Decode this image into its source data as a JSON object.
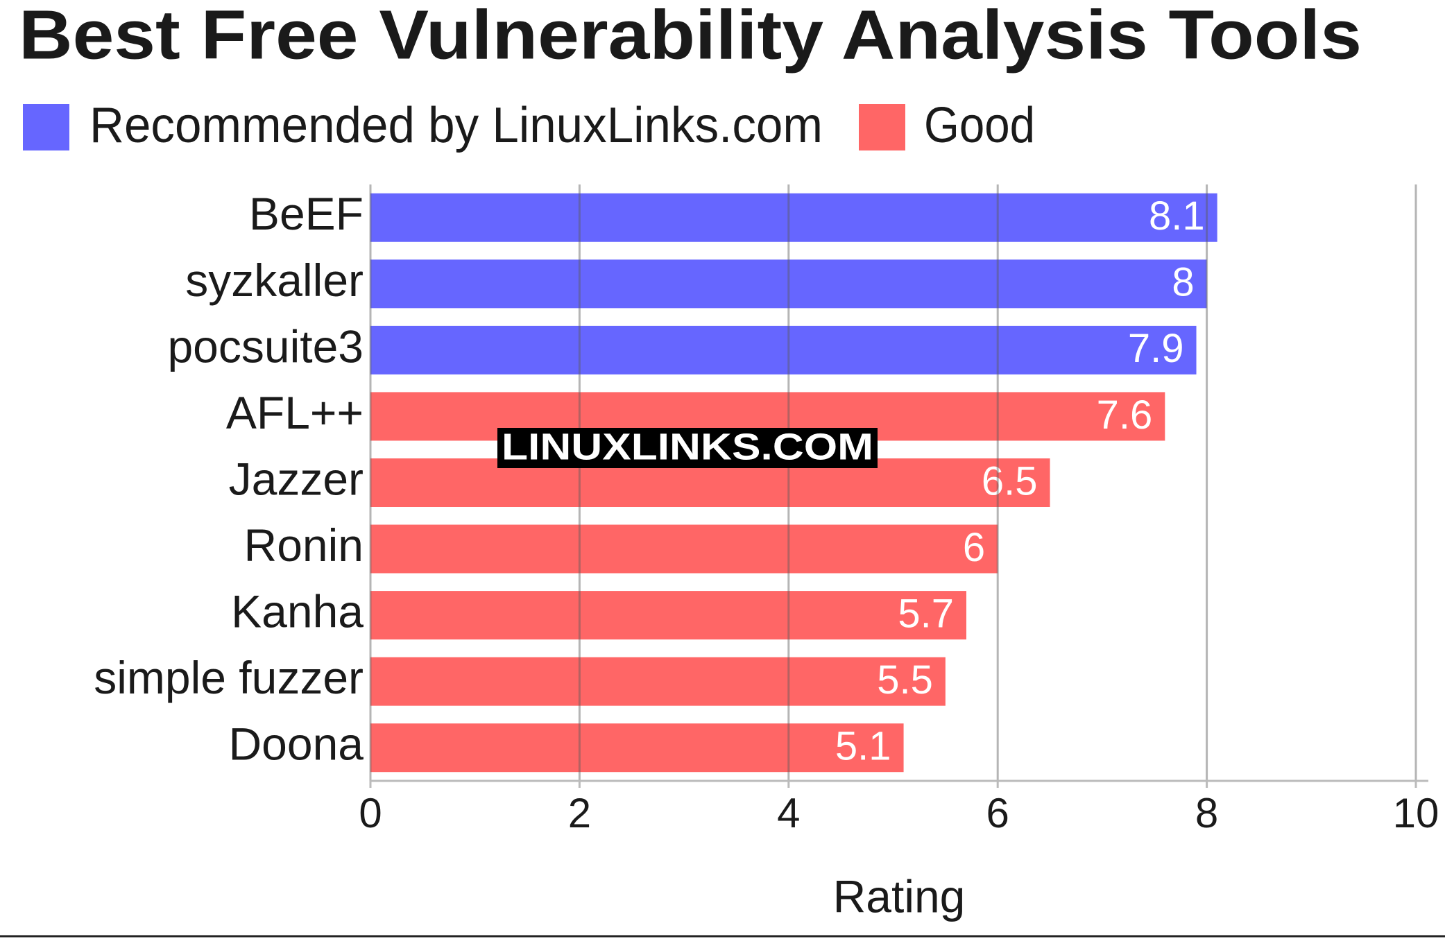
{
  "chart_data": {
    "type": "bar",
    "orientation": "horizontal",
    "title": "Best Free Vulnerability Analysis Tools",
    "categories": [
      "BeEF",
      "syzkaller",
      "pocsuite3",
      "AFL++",
      "Jazzer",
      "Ronin",
      "Kanha",
      "simple fuzzer",
      "Doona"
    ],
    "series": [
      {
        "name": "Recommended by LinuxLinks.com",
        "color": "#6666ff",
        "values": [
          8.1,
          8,
          7.9,
          null,
          null,
          null,
          null,
          null,
          null
        ]
      },
      {
        "name": "Good",
        "color": "#ff6666",
        "values": [
          null,
          null,
          null,
          7.6,
          6.5,
          6,
          5.7,
          5.5,
          5.1
        ]
      }
    ],
    "xlabel": "Rating",
    "xlim": [
      0,
      10
    ],
    "xticks": [
      0,
      2,
      4,
      6,
      8,
      10
    ],
    "grid": true,
    "watermark": "LINUXLINKS.COM"
  }
}
